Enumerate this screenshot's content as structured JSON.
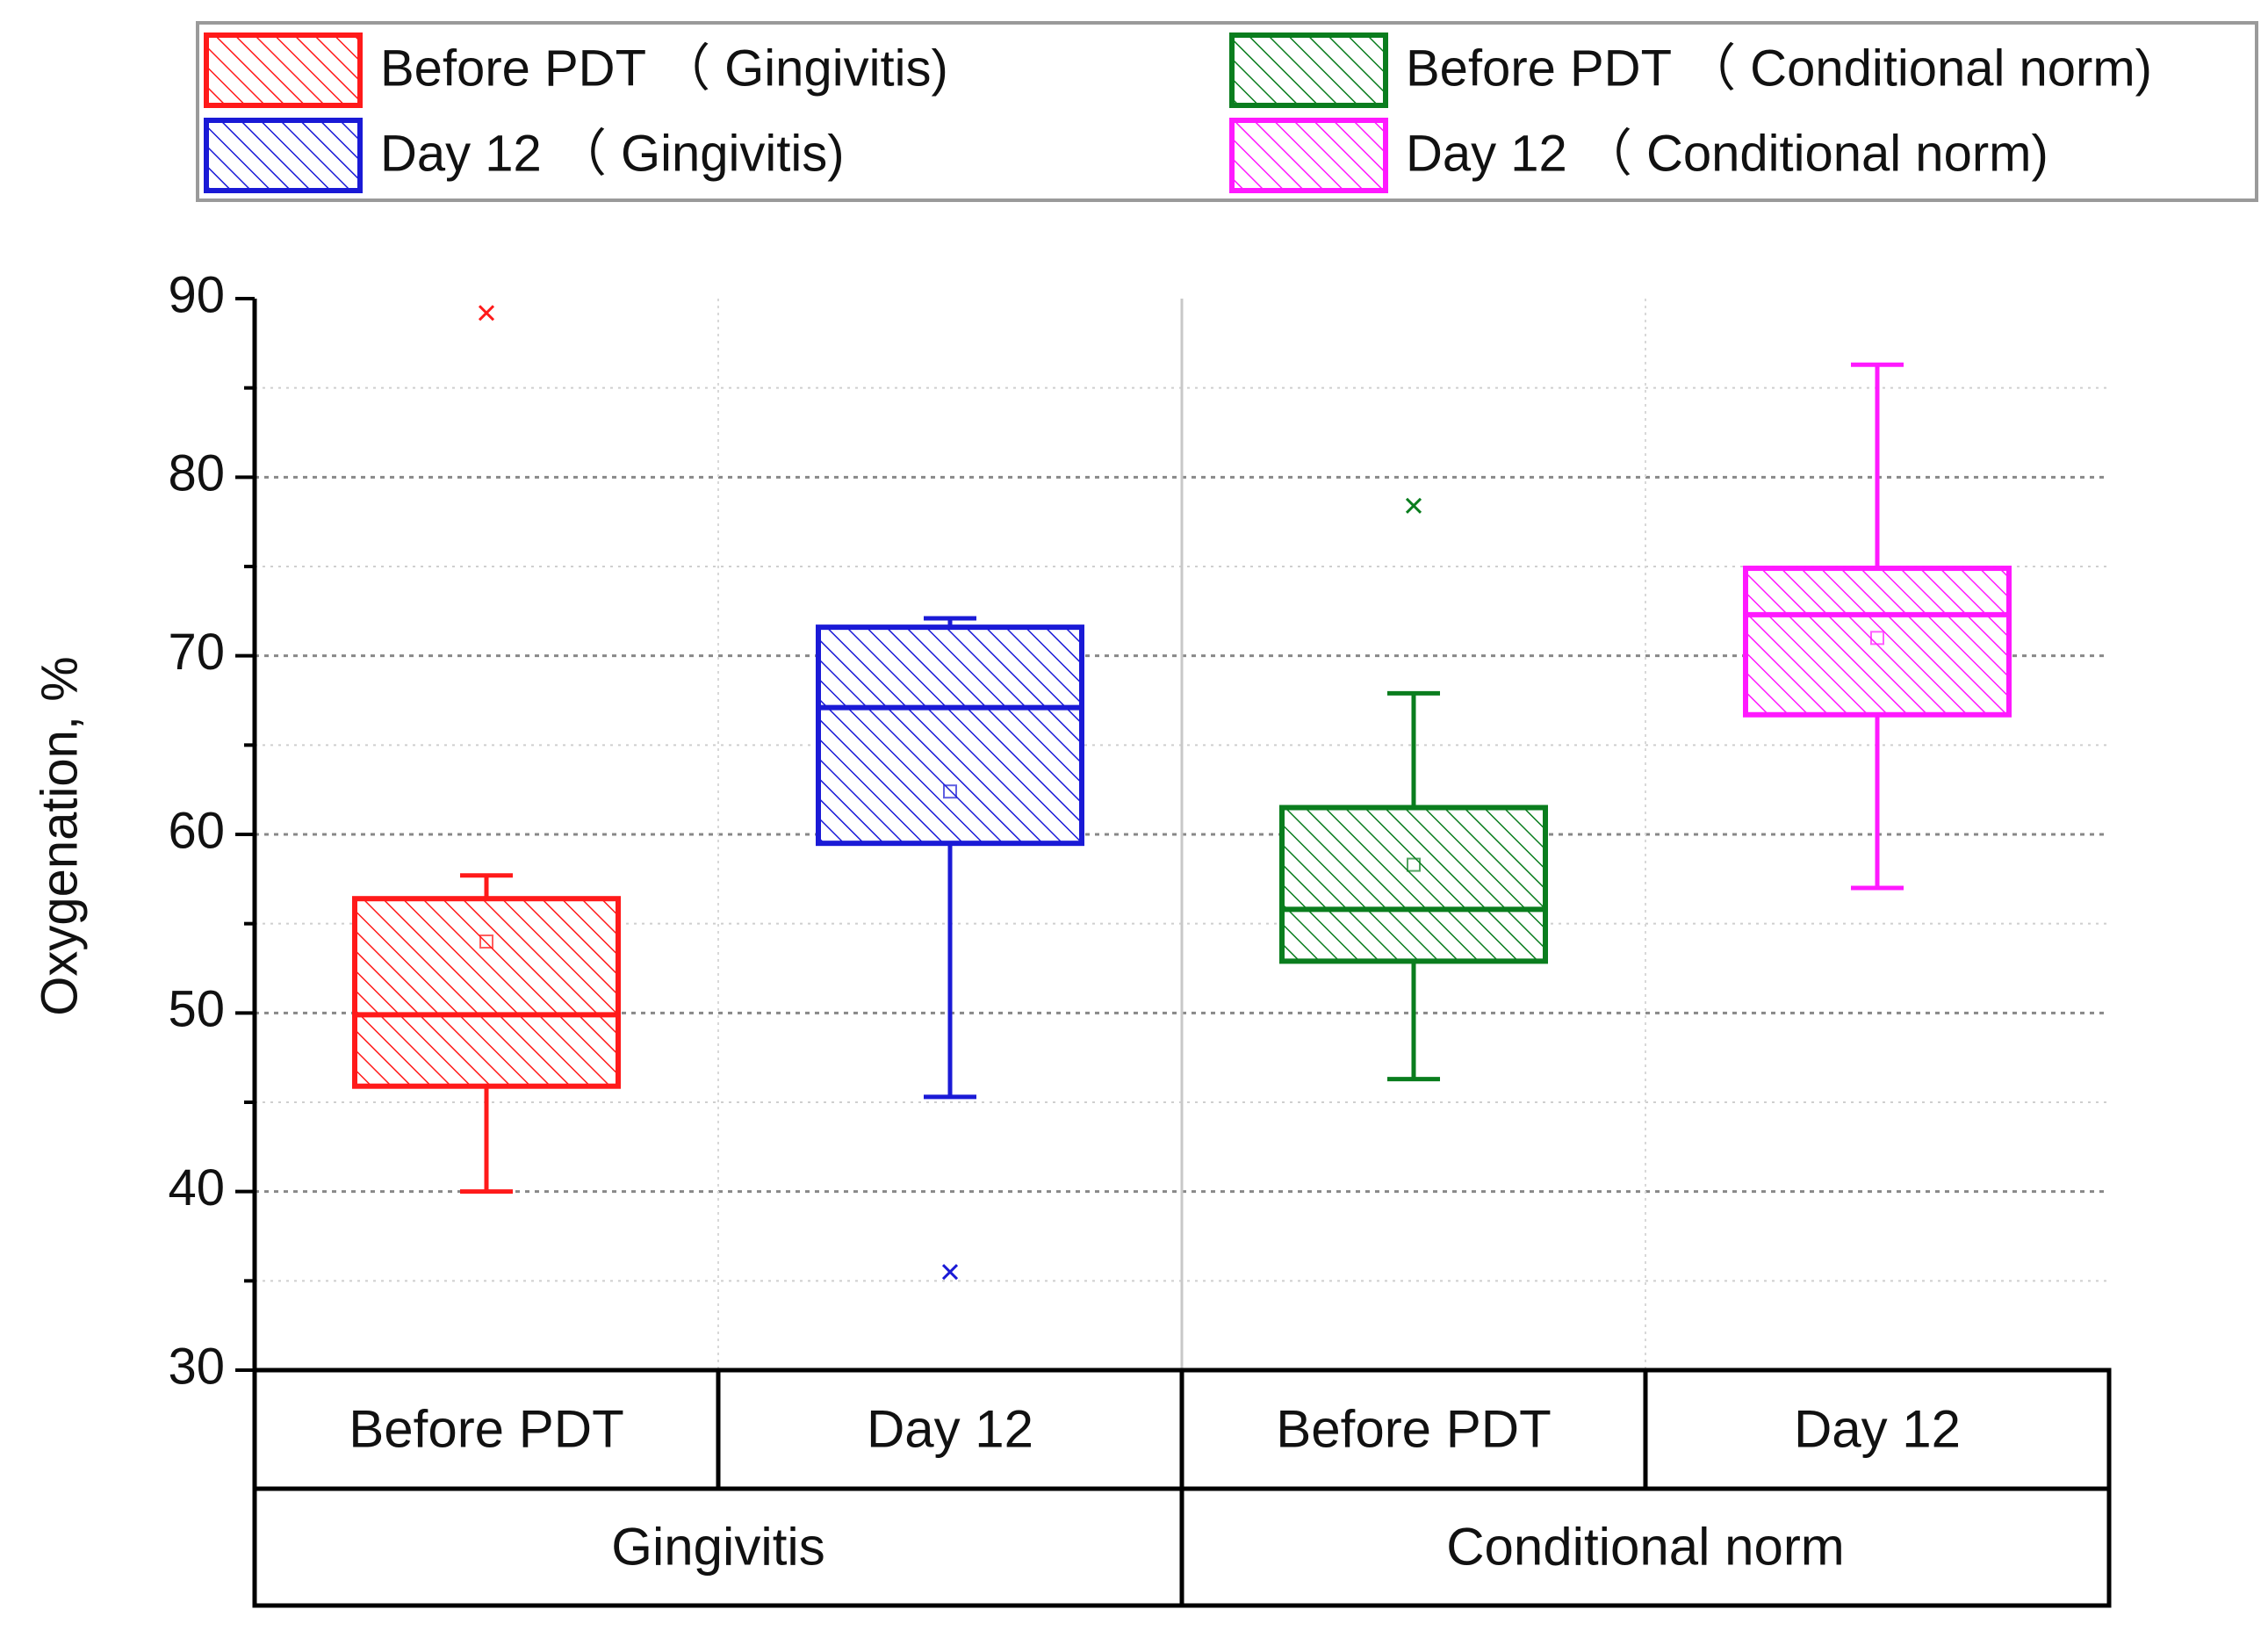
{
  "chart_data": {
    "type": "box",
    "ylabel": "Oxygenation, %",
    "ylim": [
      30,
      90
    ],
    "yticks": [
      "30",
      "40",
      "50",
      "60",
      "70",
      "80",
      "90"
    ],
    "grid": true,
    "legend_position": "top",
    "groups": [
      {
        "label": "Gingivitis",
        "categories": [
          "Before PDT",
          "Day 12"
        ]
      },
      {
        "label": "Conditional norm",
        "categories": [
          "Before PDT",
          "Day 12"
        ]
      }
    ],
    "series": [
      {
        "name": "Before PDT (Gingivitis)",
        "legend": "Before PDT （ Gingivitis)",
        "color": "#ff1a1a",
        "min": 40,
        "q1": 45.9,
        "median": 49.9,
        "q3": 56.4,
        "max": 57.7,
        "mean": 54,
        "outliers": [
          89.2
        ]
      },
      {
        "name": "Day 12 (Gingivitis)",
        "legend": "Day 12 （ Gingivitis)",
        "color": "#1a1ad6",
        "min": 45.3,
        "q1": 59.5,
        "median": 67.1,
        "q3": 71.6,
        "max": 72.1,
        "mean": 62.4,
        "outliers": [
          35.5
        ]
      },
      {
        "name": "Before PDT (Conditional norm)",
        "legend": "Before PDT （ Conditional norm)",
        "color": "#0a7d1e",
        "min": 46.3,
        "q1": 52.9,
        "median": 55.8,
        "q3": 61.5,
        "max": 67.9,
        "mean": 58.3,
        "outliers": [
          78.4
        ]
      },
      {
        "name": "Day 12 (Conditional norm)",
        "legend": "Day 12 （ Conditional norm)",
        "color": "#ff19ff",
        "min": 57,
        "q1": 66.7,
        "median": 72.3,
        "q3": 74.9,
        "max": 86.3,
        "mean": 71,
        "outliers": []
      }
    ]
  }
}
